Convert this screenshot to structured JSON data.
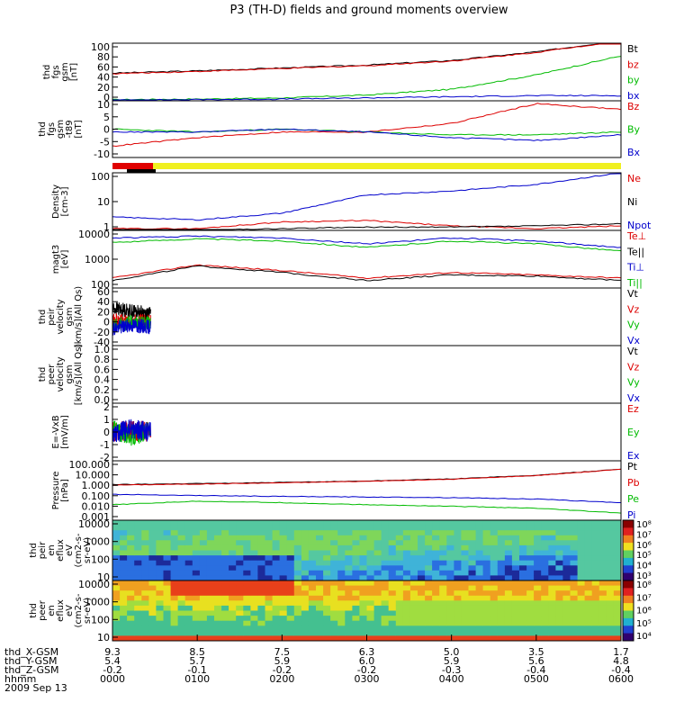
{
  "title": "P3 (TH-D) fields and ground moments overview",
  "panels": [
    {
      "id": "fgs-gsm",
      "ylabel": [
        "thd",
        "fgs",
        "gsm",
        "[nT]"
      ],
      "yticks": [
        "100",
        "80",
        "60",
        "40",
        "20",
        "0"
      ],
      "legend": [
        {
          "text": "Bt",
          "color": "#000000"
        },
        {
          "text": "bz",
          "color": "#dd0000"
        },
        {
          "text": "by",
          "color": "#00bb00"
        },
        {
          "text": "bx",
          "color": "#0000cc"
        }
      ]
    },
    {
      "id": "fgs-gsm-t89",
      "ylabel": [
        "thd",
        "fgs",
        "gsm",
        "-t89",
        "[nT]"
      ],
      "yticks": [
        "10",
        "5",
        "0",
        "-5",
        "-10"
      ],
      "legend": [
        {
          "text": "Bz",
          "color": "#dd0000"
        },
        {
          "text": "By",
          "color": "#00bb00"
        },
        {
          "text": "Bx",
          "color": "#0000cc"
        }
      ]
    },
    {
      "id": "density",
      "ylabel": [
        "Density",
        "[cm-3]"
      ],
      "yticks": [
        "100",
        "10",
        "1"
      ],
      "legend": [
        {
          "text": "Ne",
          "color": "#dd0000"
        },
        {
          "text": "Ni",
          "color": "#000000"
        },
        {
          "text": "Npot",
          "color": "#0000cc"
        }
      ]
    },
    {
      "id": "temperature",
      "ylabel": [
        "magt3",
        "[eV]"
      ],
      "yticks": [
        "10000",
        "1000",
        "100"
      ],
      "legend": [
        {
          "text": "Te⊥",
          "color": "#dd0000"
        },
        {
          "text": "Te||",
          "color": "#000000"
        },
        {
          "text": "Ti⊥",
          "color": "#0000cc"
        },
        {
          "text": "Ti||",
          "color": "#00bb00"
        }
      ]
    },
    {
      "id": "peir-velocity",
      "ylabel": [
        "thd",
        "peir",
        "velocity",
        "gsm",
        "[km/s](All Qs)"
      ],
      "yticks": [
        "60",
        "40",
        "20",
        "0",
        "-20",
        "-40"
      ],
      "legend": [
        {
          "text": "Vt",
          "color": "#000000"
        },
        {
          "text": "Vz",
          "color": "#dd0000"
        },
        {
          "text": "Vy",
          "color": "#00bb00"
        },
        {
          "text": "Vx",
          "color": "#0000cc"
        }
      ]
    },
    {
      "id": "peer-velocity",
      "ylabel": [
        "thd",
        "peer",
        "velocity",
        "gsm",
        "[km/s](All Qs)"
      ],
      "yticks": [
        "1.0",
        "0.8",
        "0.6",
        "0.4",
        "0.2",
        "0.0"
      ],
      "legend": [
        {
          "text": "Vt",
          "color": "#000000"
        },
        {
          "text": "Vz",
          "color": "#dd0000"
        },
        {
          "text": "Vy",
          "color": "#00bb00"
        },
        {
          "text": "Vx",
          "color": "#0000cc"
        }
      ]
    },
    {
      "id": "efield",
      "ylabel": [
        "E=-VxB",
        "[mV/m]"
      ],
      "yticks": [
        "2",
        "1",
        "0",
        "-1",
        "-2"
      ],
      "legend": [
        {
          "text": "Ez",
          "color": "#dd0000"
        },
        {
          "text": "Ey",
          "color": "#00bb00"
        },
        {
          "text": "Ex",
          "color": "#0000cc"
        }
      ]
    },
    {
      "id": "pressure",
      "ylabel": [
        "Pressure",
        "[nPa]"
      ],
      "yticks": [
        "100.000",
        "10.000",
        "1.000",
        "0.100",
        "0.010",
        "0.001"
      ],
      "legend": [
        {
          "text": "Pt",
          "color": "#000000"
        },
        {
          "text": "Pb",
          "color": "#dd0000"
        },
        {
          "text": "Pe",
          "color": "#00bb00"
        },
        {
          "text": "Pi",
          "color": "#0000cc"
        }
      ]
    },
    {
      "id": "peir-eflux",
      "ylabel": [
        "thd",
        "peir",
        "en",
        "eflux",
        "eV",
        "(cm2-s-",
        "sr-eV)"
      ],
      "yticks": [
        "10000",
        "1000",
        "100",
        "10"
      ],
      "colorbar": [
        "10⁸",
        "10⁷",
        "10⁶",
        "10⁵",
        "10⁴",
        "10³"
      ]
    },
    {
      "id": "peer-eflux",
      "ylabel": [
        "thd",
        "peer",
        "en",
        "eflux",
        "eV",
        "(cm2-s-",
        "sr-eV)"
      ],
      "yticks": [
        "10000",
        "1000",
        "100",
        "10"
      ],
      "colorbar": [
        "10⁸",
        "10⁷",
        "10⁶",
        "10⁵",
        "10⁴"
      ]
    }
  ],
  "xaxis": {
    "row_labels": [
      "thd_X-GSM",
      "thd_Y-GSM",
      "thd_Z-GSM",
      "hhmm",
      "2009 Sep 13"
    ],
    "ticks": [
      {
        "x": "9.3",
        "y": "5.4",
        "z": "-0.2",
        "t": "0000"
      },
      {
        "x": "8.5",
        "y": "5.7",
        "z": "-0.1",
        "t": "0100"
      },
      {
        "x": "7.5",
        "y": "5.9",
        "z": "-0.2",
        "t": "0200"
      },
      {
        "x": "6.3",
        "y": "6.0",
        "z": "-0.2",
        "t": "0300"
      },
      {
        "x": "5.0",
        "y": "5.9",
        "z": "-0.3",
        "t": "0400"
      },
      {
        "x": "3.5",
        "y": "5.6",
        "z": "-0.4",
        "t": "0500"
      },
      {
        "x": "1.7",
        "y": "4.8",
        "z": "-0.4",
        "t": "0600"
      }
    ]
  },
  "chart_data": {
    "type": "line",
    "title": "P3 (TH-D) fields and ground moments overview",
    "date": "2009 Sep 13",
    "x_time_range": [
      "0000",
      "0600"
    ],
    "panels": [
      {
        "name": "thd fgs gsm [nT]",
        "ylim": [
          0,
          100
        ],
        "x": [
          "0000",
          "0100",
          "0200",
          "0300",
          "0400",
          "0500",
          "0600"
        ],
        "series": [
          {
            "name": "Bt",
            "values": [
              48,
              52,
              57,
              62,
              70,
              85,
              105
            ]
          },
          {
            "name": "bz",
            "values": [
              47,
              51,
              56,
              61,
              69,
              84,
              104
            ]
          },
          {
            "name": "by",
            "values": [
              2,
              3,
              5,
              10,
              20,
              45,
              78
            ]
          },
          {
            "name": "bx",
            "values": [
              1,
              2,
              3,
              5,
              7,
              9,
              9
            ]
          }
        ]
      },
      {
        "name": "thd fgs gsm -t89 [nT]",
        "ylim": [
          -10,
          10
        ],
        "x": [
          "0000",
          "0100",
          "0200",
          "0300",
          "0400",
          "0500",
          "0600"
        ],
        "series": [
          {
            "name": "Bz",
            "values": [
              -6,
              -3,
              -1,
              -1,
              2,
              9,
              7
            ]
          },
          {
            "name": "By",
            "values": [
              0,
              -1,
              0,
              -1,
              -2,
              -2,
              -1
            ]
          },
          {
            "name": "Bx",
            "values": [
              -1,
              -1,
              0,
              -1,
              -3,
              -4,
              -2
            ]
          }
        ]
      },
      {
        "name": "Density [cm-3]",
        "scale": "log",
        "ylim": [
          0.5,
          200
        ],
        "x": [
          "0000",
          "0100",
          "0200",
          "0300",
          "0400",
          "0500",
          "0600"
        ],
        "series": [
          {
            "name": "Ne",
            "values": [
              0.6,
              0.6,
              1.2,
              1.4,
              0.8,
              0.6,
              0.8
            ]
          },
          {
            "name": "Ni",
            "values": [
              0.5,
              0.5,
              0.6,
              0.7,
              0.7,
              0.8,
              1.0
            ]
          },
          {
            "name": "Npot",
            "values": [
              2,
              1.5,
              3,
              20,
              30,
              60,
              200
            ]
          }
        ]
      },
      {
        "name": "magt3 [eV]",
        "scale": "log",
        "ylim": [
          60,
          12000
        ],
        "x": [
          "0000",
          "0100",
          "0200",
          "0300",
          "0400",
          "0500",
          "0600"
        ],
        "series": [
          {
            "name": "Te⊥",
            "values": [
              150,
              500,
              300,
              150,
              250,
              200,
              150
            ]
          },
          {
            "name": "Te||",
            "values": [
              120,
              450,
              250,
              120,
              200,
              180,
              120
            ]
          },
          {
            "name": "Ti⊥",
            "values": [
              6000,
              7000,
              6000,
              3500,
              6000,
              4500,
              2500
            ]
          },
          {
            "name": "Ti||",
            "values": [
              4000,
              5500,
              4500,
              2500,
              4500,
              3500,
              1800
            ]
          }
        ]
      },
      {
        "name": "thd peir velocity gsm [km/s](All Qs)",
        "ylim": [
          -40,
          60
        ],
        "x": [
          "0000",
          "0010",
          "0020"
        ],
        "series": [
          {
            "name": "Vt",
            "values": [
              25,
              20,
              15
            ]
          },
          {
            "name": "Vz",
            "values": [
              3,
              2,
              4
            ]
          },
          {
            "name": "Vy",
            "values": [
              -5,
              0,
              -2
            ]
          },
          {
            "name": "Vx",
            "values": [
              -10,
              -5,
              -8
            ]
          }
        ]
      },
      {
        "name": "thd peer velocity gsm [km/s](All Qs)",
        "ylim": [
          0,
          1
        ],
        "series": []
      },
      {
        "name": "E=-VxB [mV/m]",
        "ylim": [
          -2,
          2
        ],
        "x": [
          "0000",
          "0010",
          "0020"
        ],
        "series": [
          {
            "name": "Ez",
            "values": [
              0,
              0.1,
              0
            ]
          },
          {
            "name": "Ey",
            "values": [
              0.2,
              -0.3,
              0.1
            ]
          },
          {
            "name": "Ex",
            "values": [
              -0.1,
              0.2,
              0
            ]
          }
        ]
      },
      {
        "name": "Pressure [nPa]",
        "scale": "log",
        "ylim": [
          0.001,
          100
        ],
        "x": [
          "0000",
          "0100",
          "0200",
          "0300",
          "0400",
          "0500",
          "0600"
        ],
        "series": [
          {
            "name": "Pt",
            "values": [
              1.0,
              1.2,
              1.5,
              2.0,
              3.0,
              6.0,
              20
            ]
          },
          {
            "name": "Pb",
            "values": [
              0.9,
              1.1,
              1.4,
              1.9,
              2.8,
              5.8,
              19
            ]
          },
          {
            "name": "Pe",
            "values": [
              0.02,
              0.04,
              0.03,
              0.02,
              0.015,
              0.01,
              0.004
            ]
          },
          {
            "name": "Pi",
            "values": [
              0.15,
              0.12,
              0.1,
              0.09,
              0.08,
              0.06,
              0.03
            ]
          }
        ]
      },
      {
        "name": "thd peir en eflux eV (cm2-s-sr-eV)",
        "type": "heatmap",
        "scale": "log",
        "ylim": [
          5,
          20000
        ],
        "zlim": [
          "10³",
          "10⁸"
        ]
      },
      {
        "name": "thd peer en eflux eV (cm2-s-sr-eV)",
        "type": "heatmap",
        "scale": "log",
        "ylim": [
          5,
          20000
        ],
        "zlim": [
          "10⁴",
          "10⁸"
        ]
      }
    ],
    "xaxis_rows": {
      "thd_X-GSM": [
        "9.3",
        "8.5",
        "7.5",
        "6.3",
        "5.0",
        "3.5",
        "1.7"
      ],
      "thd_Y-GSM": [
        "5.4",
        "5.7",
        "5.9",
        "6.0",
        "5.9",
        "5.6",
        "4.8"
      ],
      "thd_Z-GSM": [
        "-0.2",
        "-0.1",
        "-0.2",
        "-0.2",
        "-0.3",
        "-0.4",
        "-0.4"
      ],
      "hhmm": [
        "0000",
        "0100",
        "0200",
        "0300",
        "0400",
        "0500",
        "0600"
      ]
    }
  }
}
